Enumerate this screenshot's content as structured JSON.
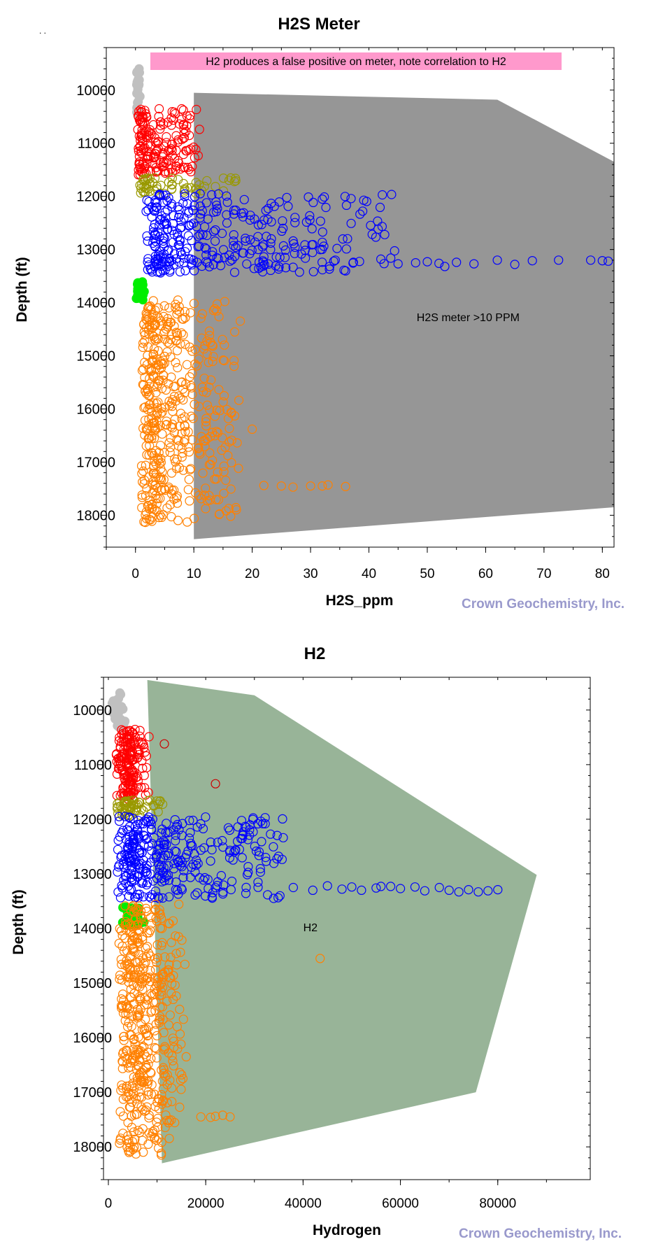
{
  "top_mark": ". .",
  "watermark": "Crown Geochemistry, Inc.",
  "chart_data": [
    {
      "type": "scatter",
      "title": "H2S Meter",
      "xlabel": "H2S_ppm",
      "ylabel": "Depth (ft)",
      "xlim": [
        -5,
        82
      ],
      "ylim": [
        18600,
        9200
      ],
      "y_inverted": true,
      "xticks": [
        0,
        10,
        20,
        30,
        40,
        50,
        60,
        70,
        80
      ],
      "yticks": [
        10000,
        11000,
        12000,
        13000,
        14000,
        15000,
        16000,
        17000,
        18000
      ],
      "callout": "H2 produces a false positive on meter, note correlation to H2",
      "callout_color": "#ff99cc",
      "region": {
        "label": "H2S meter >10 PPM",
        "label_at": [
          57,
          14350
        ],
        "color": "#969696",
        "polygon": [
          [
            10,
            10050
          ],
          [
            62,
            10180
          ],
          [
            82,
            11350
          ],
          [
            82,
            17850
          ],
          [
            10,
            18450
          ]
        ]
      },
      "series": [
        {
          "color": "#c0c0c0",
          "filled": true,
          "depth": [
            9600,
            10500
          ],
          "x_peak": 0.3,
          "x_max": 0.8,
          "n": 30
        },
        {
          "color": "#ff0000",
          "depth": [
            10350,
            11600
          ],
          "x_peak": 1,
          "x_max": 11,
          "n": 180
        },
        {
          "color": "#999900",
          "depth": [
            11650,
            11950
          ],
          "x_peak": 1.5,
          "x_max": 18,
          "n": 60
        },
        {
          "color": "#0000ff",
          "depth": [
            11950,
            13450
          ],
          "x_peak": 4,
          "x_max": 45,
          "n": 340
        },
        {
          "color": "#00ee00",
          "filled": true,
          "depth": [
            13600,
            13950
          ],
          "x_peak": 0.3,
          "x_max": 1.5,
          "n": 30
        },
        {
          "color": "#ff8000",
          "depth": [
            13950,
            18150
          ],
          "x_peak": 2.5,
          "x_max": 18,
          "n": 480
        }
      ],
      "outliers": [
        {
          "color": "#0000ff",
          "points": [
            [
              48,
              13250
            ],
            [
              50,
              13230
            ],
            [
              52,
              13260
            ],
            [
              53,
              13320
            ],
            [
              62,
              13200
            ],
            [
              65,
              13280
            ],
            [
              68,
              13210
            ],
            [
              72.5,
              13200
            ],
            [
              78,
              13200
            ],
            [
              80,
              13210
            ],
            [
              81,
              13220
            ],
            [
              55,
              13240
            ],
            [
              58,
              13270
            ],
            [
              45,
              13270
            ]
          ]
        },
        {
          "color": "#ff8000",
          "points": [
            [
              17,
              14550
            ],
            [
              20,
              16380
            ],
            [
              17,
              16130
            ],
            [
              25,
              17450
            ],
            [
              30,
              17450
            ],
            [
              32,
              17450
            ],
            [
              33,
              17430
            ],
            [
              36,
              17460
            ],
            [
              27,
              17470
            ],
            [
              22,
              17440
            ]
          ]
        }
      ]
    },
    {
      "type": "scatter",
      "title": "H2",
      "xlabel": "Hydrogen",
      "ylabel": "Depth (ft)",
      "xlim": [
        -1000,
        99000
      ],
      "ylim": [
        18600,
        9400
      ],
      "y_inverted": true,
      "xticks": [
        0,
        20000,
        40000,
        60000,
        80000
      ],
      "yticks": [
        10000,
        11000,
        12000,
        13000,
        14000,
        15000,
        16000,
        17000,
        18000
      ],
      "region": {
        "label": "H2",
        "label_at": [
          41500,
          14050
        ],
        "color": "#98b498",
        "polygon": [
          [
            8000,
            9450
          ],
          [
            30000,
            9730
          ],
          [
            88000,
            13020
          ],
          [
            75500,
            17000
          ],
          [
            11000,
            18300
          ]
        ]
      },
      "series": [
        {
          "color": "#c0c0c0",
          "filled": true,
          "depth": [
            9650,
            10400
          ],
          "x_peak": 1800,
          "x_max": 3000,
          "n": 30
        },
        {
          "color": "#ff0000",
          "depth": [
            10350,
            11650
          ],
          "x_peak": 3500,
          "x_max": 7500,
          "n": 180
        },
        {
          "color": "#999900",
          "depth": [
            11650,
            11950
          ],
          "x_peak": 3500,
          "x_max": 11500,
          "n": 60
        },
        {
          "color": "#0000ff",
          "depth": [
            11950,
            13450
          ],
          "x_peak": 4500,
          "x_max": 36000,
          "n": 340
        },
        {
          "color": "#00ee00",
          "filled": true,
          "depth": [
            13600,
            13950
          ],
          "x_peak": 4500,
          "x_max": 6500,
          "n": 30
        },
        {
          "color": "#ff8000",
          "depth": [
            13550,
            18150
          ],
          "x_peak": 5000,
          "x_max": 15000,
          "n": 480
        }
      ],
      "outliers": [
        {
          "color": "#cc0000",
          "points": [
            [
              11500,
              10620
            ],
            [
              22000,
              11350
            ]
          ]
        },
        {
          "color": "#0000ff",
          "points": [
            [
              38000,
              13250
            ],
            [
              42000,
              13300
            ],
            [
              45000,
              13220
            ],
            [
              48000,
              13280
            ],
            [
              50000,
              13240
            ],
            [
              52000,
              13300
            ],
            [
              55000,
              13260
            ],
            [
              58000,
              13230
            ],
            [
              60000,
              13270
            ],
            [
              63000,
              13240
            ],
            [
              65000,
              13310
            ],
            [
              68000,
              13250
            ],
            [
              70000,
              13300
            ],
            [
              72000,
              13330
            ],
            [
              74000,
              13290
            ],
            [
              76000,
              13330
            ],
            [
              78000,
              13310
            ],
            [
              80000,
              13290
            ],
            [
              56000,
              13230
            ]
          ]
        },
        {
          "color": "#ff8000",
          "points": [
            [
              43500,
              14550
            ],
            [
              16000,
              16350
            ],
            [
              19000,
              17450
            ],
            [
              22000,
              17440
            ],
            [
              23500,
              17420
            ],
            [
              25000,
              17450
            ],
            [
              21000,
              17460
            ]
          ]
        }
      ]
    }
  ]
}
